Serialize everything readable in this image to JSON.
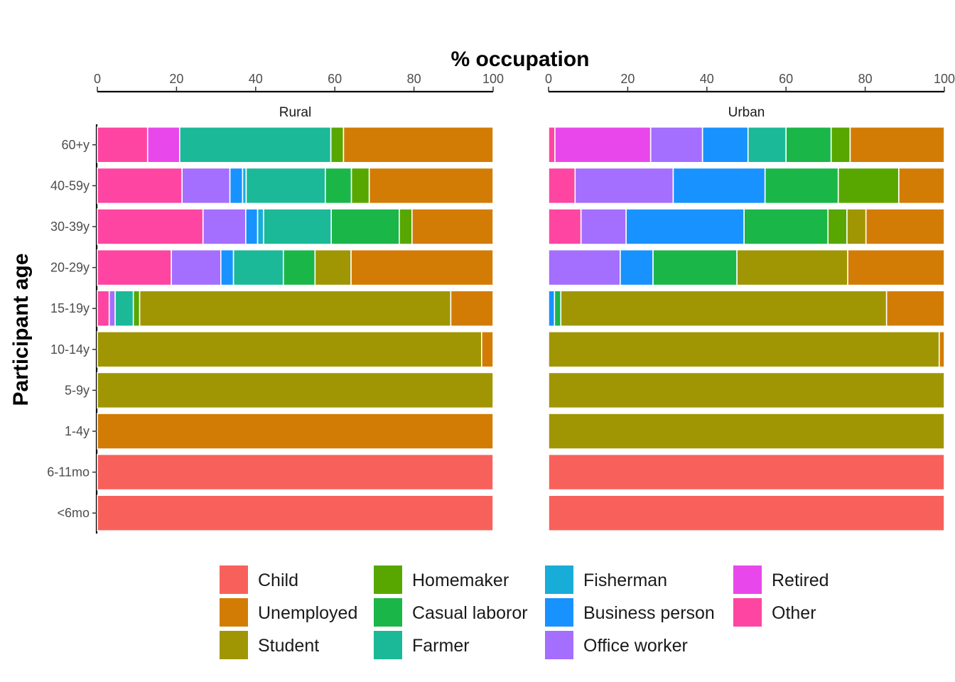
{
  "colors": {
    "Child": "#F8615B",
    "Unemployed": "#D37C05",
    "Student": "#A09603",
    "Homemaker": "#57A700",
    "Casual laboror": "#1BB648",
    "Farmer": "#1BB997",
    "Fisherman": "#18ADD8",
    "Business person": "#1892FF",
    "Office worker": "#A46EFF",
    "Retired": "#E848EB",
    "Other": "#FE45A2"
  },
  "chart_data": {
    "type": "bar",
    "orientation": "horizontal",
    "stacked": true,
    "xlabel": "% occupation",
    "ylabel": "Participant age",
    "xlim": [
      0,
      100
    ],
    "xticks": [
      0,
      20,
      40,
      60,
      80,
      100
    ],
    "x_axis_position": "top",
    "legend_position": "bottom",
    "grid": false,
    "categories": [
      "60+y",
      "40-59y",
      "30-39y",
      "20-29y",
      "15-19y",
      "10-14y",
      "5-9y",
      "1-4y",
      "6-11mo",
      "<6mo"
    ],
    "stack_order": [
      "Other",
      "Retired",
      "Office worker",
      "Business person",
      "Fisherman",
      "Farmer",
      "Casual laboror",
      "Homemaker",
      "Student",
      "Unemployed",
      "Child"
    ],
    "legend": {
      "columns": [
        [
          "Child",
          "Unemployed",
          "Student"
        ],
        [
          "Homemaker",
          "Casual laboror",
          "Farmer"
        ],
        [
          "Fisherman",
          "Business person",
          "Office worker"
        ],
        [
          "Retired",
          "Other"
        ]
      ]
    },
    "panels": [
      {
        "name": "Rural",
        "bars": [
          {
            "Other": 12.7,
            "Retired": 8.1,
            "Farmer": 38.2,
            "Homemaker": 3.2,
            "Unemployed": 37.8
          },
          {
            "Other": 21.4,
            "Office worker": 12.1,
            "Business person": 3.2,
            "Fisherman": 0.9,
            "Farmer": 20.0,
            "Casual laboror": 6.6,
            "Homemaker": 4.5,
            "Unemployed": 31.3
          },
          {
            "Other": 26.7,
            "Office worker": 10.8,
            "Business person": 3.0,
            "Fisherman": 1.5,
            "Farmer": 17.1,
            "Casual laboror": 17.2,
            "Homemaker": 3.2,
            "Unemployed": 20.5
          },
          {
            "Other": 18.7,
            "Office worker": 12.5,
            "Business person": 3.2,
            "Farmer": 12.6,
            "Casual laboror": 8.0,
            "Student": 9.1,
            "Unemployed": 35.9
          },
          {
            "Other": 3.0,
            "Office worker": 1.5,
            "Farmer": 4.6,
            "Homemaker": 1.6,
            "Student": 78.6,
            "Unemployed": 10.7
          },
          {
            "Student": 97.1,
            "Unemployed": 2.9
          },
          {
            "Student": 100
          },
          {
            "Unemployed": 100
          },
          {
            "Child": 100
          },
          {
            "Child": 100
          }
        ]
      },
      {
        "name": "Urban",
        "bars": [
          {
            "Other": 1.6,
            "Retired": 24.2,
            "Office worker": 13.1,
            "Business person": 11.5,
            "Farmer": 9.6,
            "Casual laboror": 11.4,
            "Homemaker": 4.8,
            "Unemployed": 23.8
          },
          {
            "Other": 6.7,
            "Office worker": 24.8,
            "Business person": 23.2,
            "Casual laboror": 18.5,
            "Homemaker": 15.3,
            "Unemployed": 11.5
          },
          {
            "Other": 8.2,
            "Office worker": 11.4,
            "Business person": 29.8,
            "Casual laboror": 21.2,
            "Homemaker": 4.8,
            "Student": 4.8,
            "Unemployed": 19.8
          },
          {
            "Office worker": 18.1,
            "Business person": 8.3,
            "Casual laboror": 21.2,
            "Student": 28.0,
            "Unemployed": 24.4
          },
          {
            "Business person": 1.5,
            "Casual laboror": 1.6,
            "Student": 82.3,
            "Unemployed": 14.6
          },
          {
            "Student": 98.7,
            "Unemployed": 1.3
          },
          {
            "Student": 100
          },
          {
            "Student": 100
          },
          {
            "Child": 100
          },
          {
            "Child": 100
          }
        ]
      }
    ]
  }
}
